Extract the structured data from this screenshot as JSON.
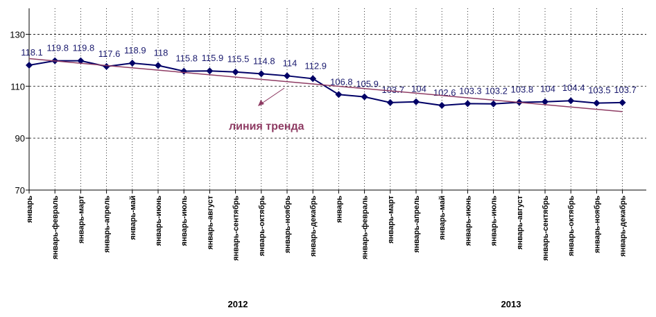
{
  "chart_data": {
    "type": "line",
    "categories": [
      "январь",
      "январь-февраль",
      "январь-март",
      "январь-апрель",
      "январь-май",
      "январь-июнь",
      "январь-июль",
      "январь-август",
      "январь-сентябрь",
      "январь-октябрь",
      "январь-ноябрь",
      "январь-декабрь",
      "январь",
      "январь-февраль",
      "январь-март",
      "январь-апрель",
      "январь-май",
      "январь-июнь",
      "январь-июль",
      "январь-август",
      "январь-сентябрь",
      "январь-октябрь",
      "январь-ноябрь",
      "январь-декабрь"
    ],
    "groups": [
      "2012",
      "2013"
    ],
    "series": [
      {
        "color": "#000066",
        "values": [
          118.1,
          119.8,
          119.8,
          117.6,
          118.9,
          118,
          115.8,
          115.9,
          115.5,
          114.8,
          114,
          112.9,
          106.8,
          105.9,
          103.7,
          104,
          102.6,
          103.3,
          103.2,
          103.8,
          104,
          104.4,
          103.5,
          103.7
        ]
      }
    ],
    "trendline": {
      "label": "линия тренда",
      "color": "#8e3b63",
      "kind": "linear"
    },
    "ylim": [
      70,
      140
    ],
    "yticks": [
      70,
      90,
      110,
      130
    ],
    "grid": true
  }
}
